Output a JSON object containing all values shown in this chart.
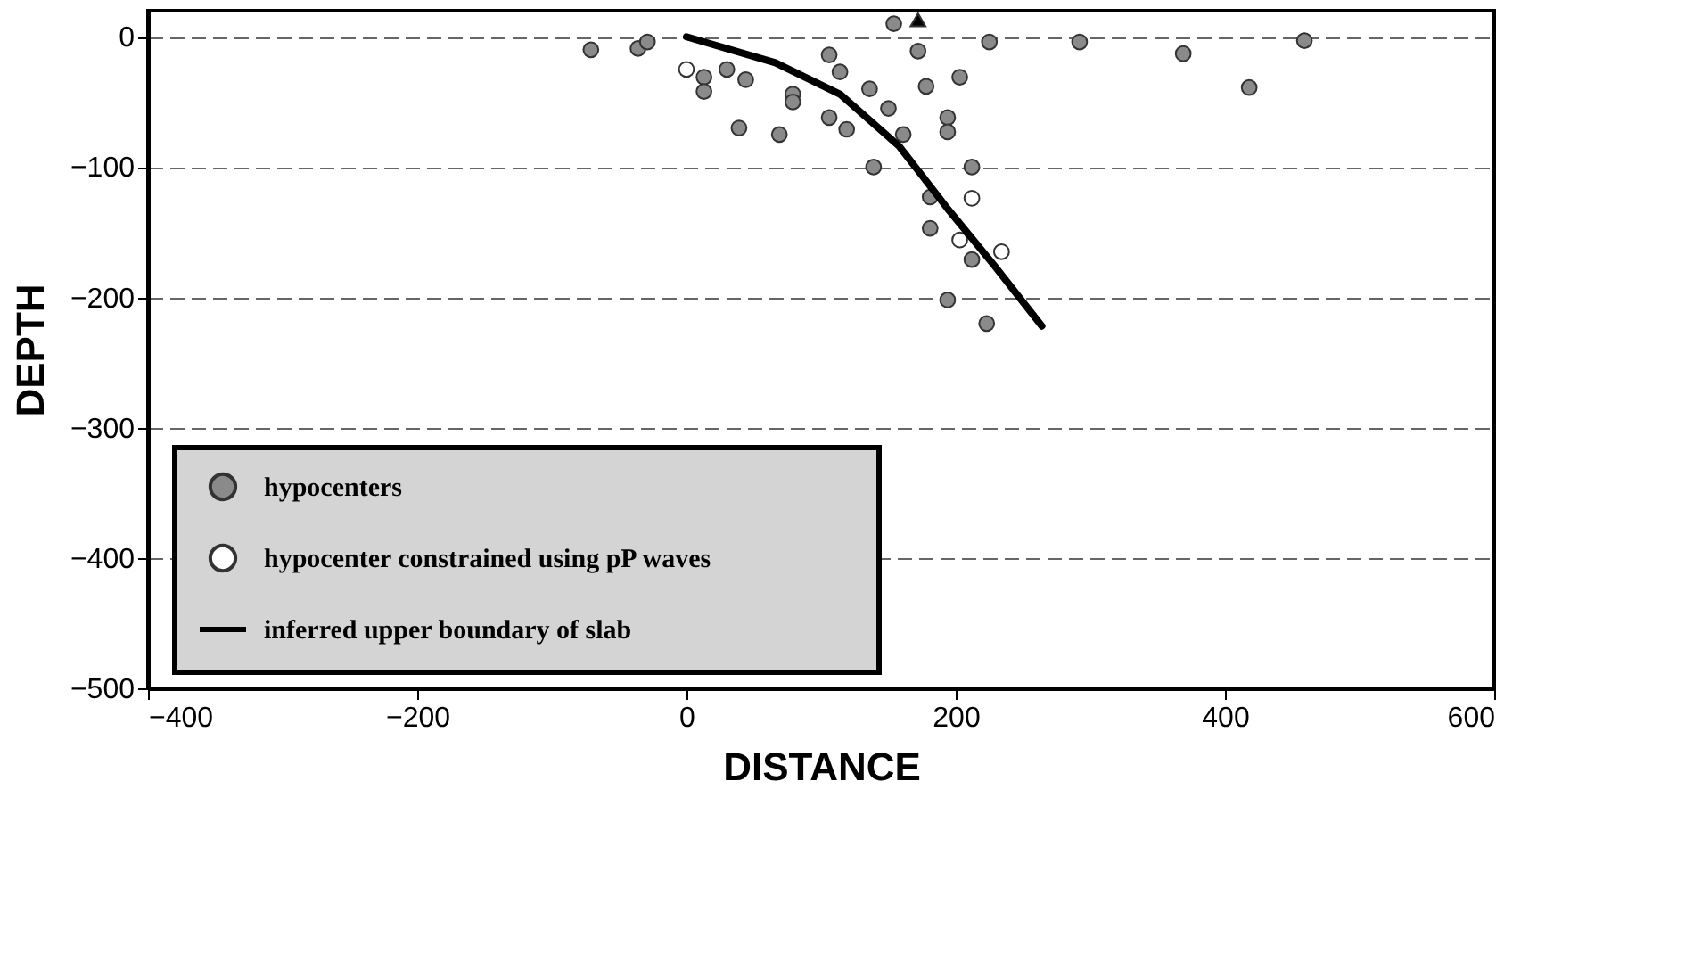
{
  "chart_data": {
    "type": "scatter",
    "xlabel": "DISTANCE",
    "ylabel": "DEPTH",
    "xlim": [
      -400,
      600
    ],
    "ylim": [
      -500,
      20
    ],
    "xticks": [
      -400,
      -200,
      0,
      200,
      400,
      600
    ],
    "yticks": [
      -500,
      -400,
      -300,
      -200,
      -100,
      0
    ],
    "grid": "y",
    "legend": "bottom left",
    "series": [
      {
        "name": "hypocenters",
        "marker": "circle",
        "color": "#8a8a8a",
        "x": [
          -71,
          -36,
          -29,
          13,
          13,
          30,
          44,
          39,
          69,
          79,
          79,
          106,
          114,
          106,
          119,
          136,
          150,
          161,
          139,
          154,
          172,
          178,
          203,
          194,
          194,
          212,
          181,
          181,
          212,
          194,
          223,
          225,
          292,
          369,
          418,
          459
        ],
        "values": [
          -10,
          -9,
          -4,
          -31,
          -42,
          -25,
          -33,
          -70,
          -75,
          -44,
          -50,
          -14,
          -27,
          -62,
          -71,
          -40,
          -55,
          -75,
          -100,
          10,
          -11,
          -38,
          -31,
          -62,
          -73,
          -100,
          -123,
          -147,
          -171,
          -202,
          -220,
          -4,
          -4,
          -13,
          -39,
          -3
        ]
      },
      {
        "name": "hypocenter constrained using pP waves",
        "marker": "circle",
        "color": "#ffffff",
        "x": [
          0,
          212,
          203,
          234
        ],
        "values": [
          -25,
          -124,
          -156,
          -165
        ]
      },
      {
        "name": "inferred upper boundary of slab",
        "type": "line",
        "color": "#000000",
        "x": [
          0,
          66,
          114,
          158,
          194,
          229,
          264
        ],
        "values": [
          0,
          -20,
          -44,
          -84,
          -132,
          -176,
          -222
        ]
      },
      {
        "marker": "triangle",
        "color": "#000000",
        "x": [
          172
        ],
        "values": [
          13
        ]
      }
    ]
  }
}
